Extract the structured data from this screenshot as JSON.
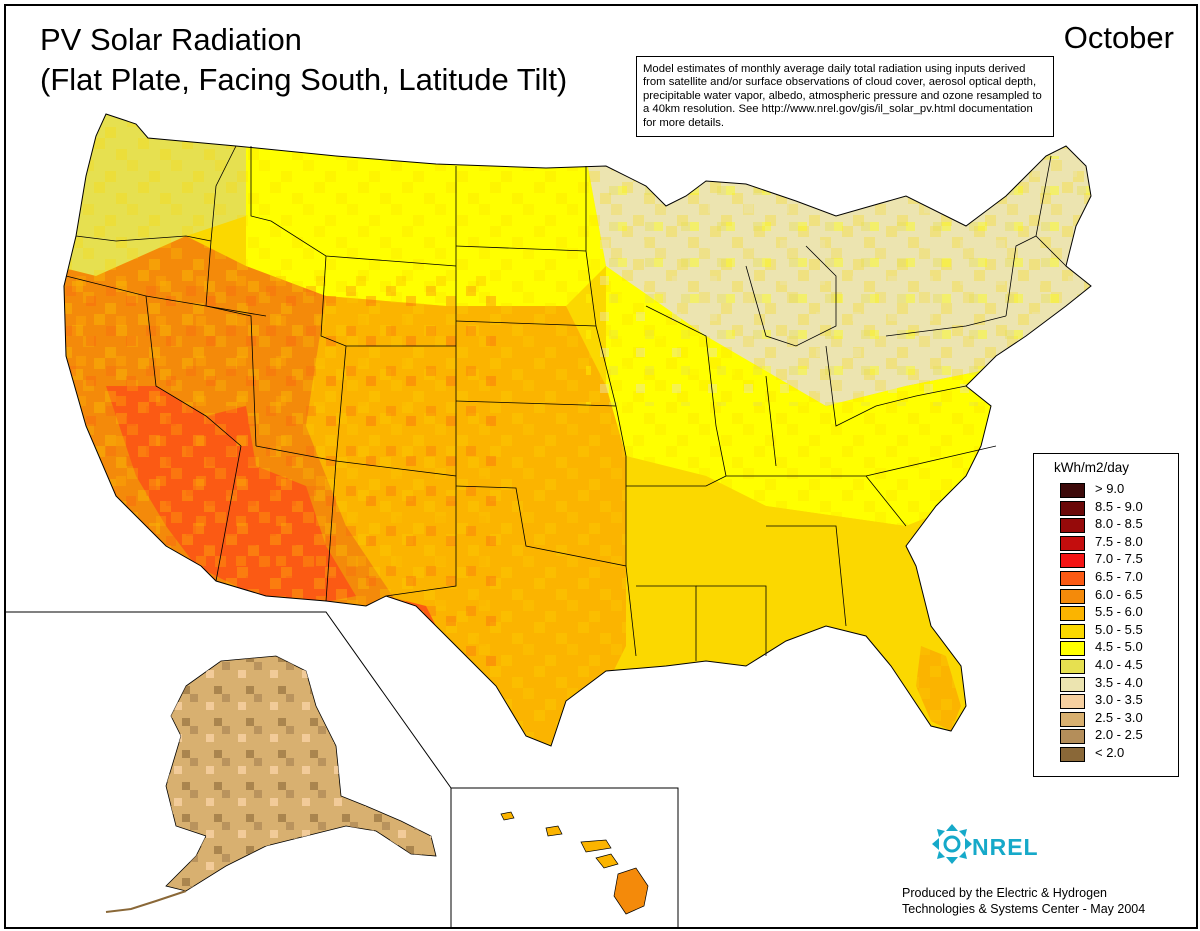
{
  "title": {
    "line1": "PV Solar Radiation",
    "line2": "(Flat Plate, Facing South, Latitude Tilt)"
  },
  "month": "October",
  "note": "Model estimates of monthly average daily total radiation using inputs derived from satellite and/or surface observations of cloud cover, aerosol optical depth, precipitable water vapor, albedo, atmospheric pressure and ozone resampled to a 40km resolution.  See http://www.nrel.gov/gis/il_solar_pv.html documentation for more details.",
  "legend": {
    "title": "kWh/m2/day",
    "items": [
      {
        "label": "> 9.0",
        "color": "#3d0a0a"
      },
      {
        "label": "8.5 - 9.0",
        "color": "#6a0808"
      },
      {
        "label": "8.0 - 8.5",
        "color": "#960a0a"
      },
      {
        "label": "7.5 - 8.0",
        "color": "#c40d0d"
      },
      {
        "label": "7.0 - 7.5",
        "color": "#f41414"
      },
      {
        "label": "6.5 - 7.0",
        "color": "#fb5a14"
      },
      {
        "label": "6.0 - 6.5",
        "color": "#f48a0a"
      },
      {
        "label": "5.5 - 6.0",
        "color": "#fbb400"
      },
      {
        "label": "5.0 - 5.5",
        "color": "#fbd800"
      },
      {
        "label": "4.5 - 5.0",
        "color": "#ffff00"
      },
      {
        "label": "4.0 - 4.5",
        "color": "#e6e050"
      },
      {
        "label": "3.5 - 4.0",
        "color": "#ece4b0"
      },
      {
        "label": "3.0 - 3.5",
        "color": "#f6d0a0"
      },
      {
        "label": "2.5 - 3.0",
        "color": "#d8b070"
      },
      {
        "label": "2.0 - 2.5",
        "color": "#b48e5a"
      },
      {
        "label": "< 2.0",
        "color": "#8a6838"
      }
    ]
  },
  "logo": {
    "text": "NREL",
    "icon": "nrel-logo-icon",
    "color": "#16a9c9"
  },
  "credit": {
    "line1": "Produced by the Electric & Hydrogen",
    "line2": "Technologies & Systems Center - May 2004"
  }
}
